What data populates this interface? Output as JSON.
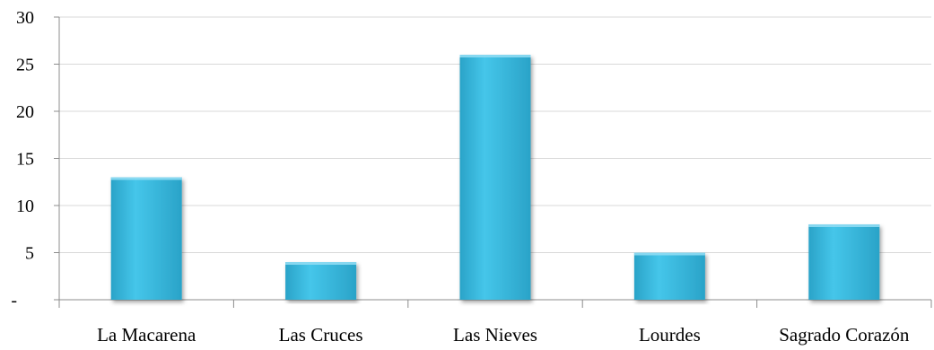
{
  "chart_data": {
    "type": "bar",
    "title": "",
    "xlabel": "",
    "ylabel": "",
    "categories": [
      "La Macarena",
      "Las Cruces",
      "Las Nieves",
      "Lourdes",
      "Sagrado Corazón"
    ],
    "values": [
      13,
      4,
      26,
      5,
      8
    ],
    "ylim": [
      0,
      30
    ],
    "yticks": [
      0,
      5,
      10,
      15,
      20,
      25,
      30
    ],
    "ytick_labels": [
      "-",
      "5",
      "10",
      "15",
      "20",
      "25",
      "30"
    ],
    "grid": true,
    "legend": "none",
    "bar_color": "#3bbbe0",
    "bar_shadow_color": "#1e7f99",
    "grid_color": "#d9d9d9",
    "axis_color": "#8c8c8c"
  }
}
